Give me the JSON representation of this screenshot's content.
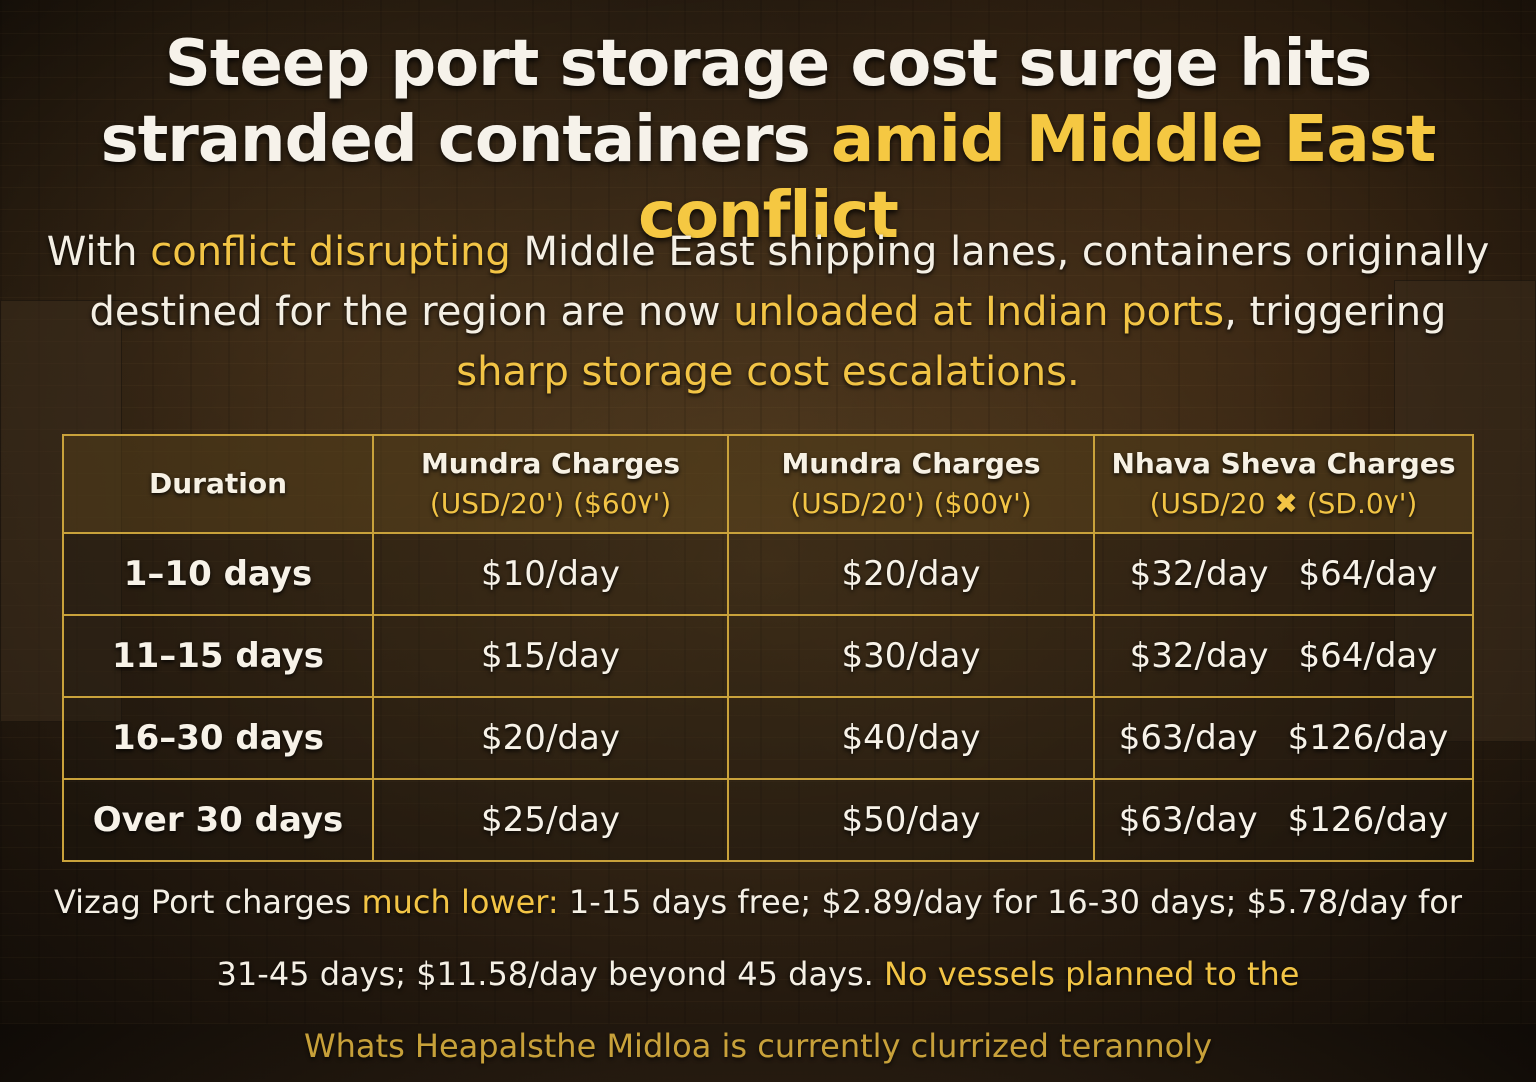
{
  "title": {
    "line1": "Steep port storage cost surge hits",
    "line2_plain": "stranded containers",
    "line2_accent": "amid Middle East conflict"
  },
  "subtitle": {
    "p1": "With",
    "a1": "conflict disrupting",
    "p2": "Middle East shipping lanes, containers originally destined for the region are now",
    "a2": "unloaded at Indian ports",
    "p3": ", triggering",
    "a3": "sharp storage cost escalations."
  },
  "table": {
    "headers": [
      {
        "label": "Duration",
        "unit": ""
      },
      {
        "label": "Mundra Charges",
        "unit": "(USD/20')  ($60٧')"
      },
      {
        "label": "Mundra Charges",
        "unit": "(USD/20')  ($00٧')"
      },
      {
        "label": "Nhava Sheva Charges",
        "unit": "(USD/20  ✖    (SD.0٧')"
      }
    ],
    "rows": [
      {
        "duration": "1–10 days",
        "c1": "$10/day",
        "c2": "$20/day",
        "c3a": "$32/day",
        "c3b": "$64/day"
      },
      {
        "duration": "11–15 days",
        "c1": "$15/day",
        "c2": "$30/day",
        "c3a": "$32/day",
        "c3b": "$64/day"
      },
      {
        "duration": "16–30 days",
        "c1": "$20/day",
        "c2": "$40/day",
        "c3a": "$63/day",
        "c3b": "$126/day"
      },
      {
        "duration": "Over 30 days",
        "c1": "$25/day",
        "c2": "$50/day",
        "c3a": "$63/day",
        "c3b": "$126/day"
      }
    ]
  },
  "footer": {
    "p1": "Vizag Port charges",
    "a1": "much lower:",
    "p2": "1-15 days free; $2.89/day for 16-30 days; $5.78/day for 31-45 days; $11.58/day beyond 45 days.",
    "a2": "No vessels planned to the",
    "a3": "Whats Heapalsthe Midloa is currently clurrized terannoly"
  },
  "colors": {
    "accent": "#f5c842",
    "border": "#c9a23b",
    "text": "#f4efe4"
  }
}
